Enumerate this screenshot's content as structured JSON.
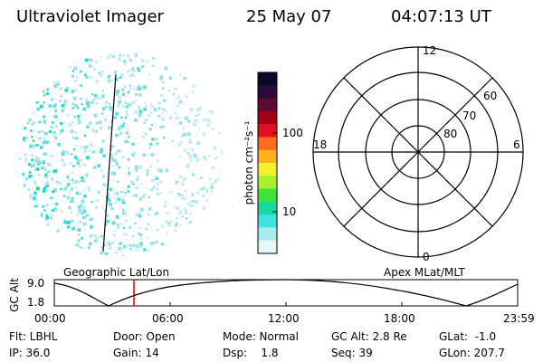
{
  "header": {
    "title": "Ultraviolet Imager",
    "date": "25 May 07",
    "time": "04:07:13 UT"
  },
  "colorbar": {
    "unit_label": "photon cm⁻²s⁻¹",
    "ticks": [
      "100",
      "10"
    ],
    "scale": "log",
    "colors": [
      "#0a0a28",
      "#2a0a3a",
      "#5a0a30",
      "#a00018",
      "#e0101e",
      "#ff6a1e",
      "#ffb01e",
      "#f4f030",
      "#aaf030",
      "#40e040",
      "#18d8a0",
      "#40e0e0",
      "#a8ecec",
      "#e4f8f8"
    ]
  },
  "polar_plot": {
    "mlt_labels": [
      "12",
      "18",
      "6",
      "0"
    ],
    "lat_labels": [
      "60",
      "70",
      "80"
    ],
    "grid_color": "#000000"
  },
  "timeline": {
    "left_label": "Geographic Lat/Lon",
    "right_label": "Apex MLat/MLT",
    "y_axis_label": "GC Alt",
    "y_ticks": [
      "9.0",
      "1.8"
    ],
    "x_ticks": [
      "00:00",
      "06:00",
      "12:00",
      "18:00",
      "23:59"
    ],
    "marker_color": "#e00000"
  },
  "status": {
    "filter": "Flt: LBHL",
    "door": "Door: Open",
    "mode": "Mode: Normal",
    "gc_alt": "GC Alt: 2.8 Re",
    "glat": "GLat:  -1.0",
    "ip": "IP: 36.0",
    "gain": "Gain: 14",
    "dsp": "Dsp:    1.8",
    "seq": "Seq: 39",
    "glon": "GLon: 207.7"
  },
  "imager": {
    "speckle_colors": [
      "#c8ecec",
      "#9ae2e2",
      "#60dcdc",
      "#22dcc8",
      "#10d890"
    ]
  }
}
